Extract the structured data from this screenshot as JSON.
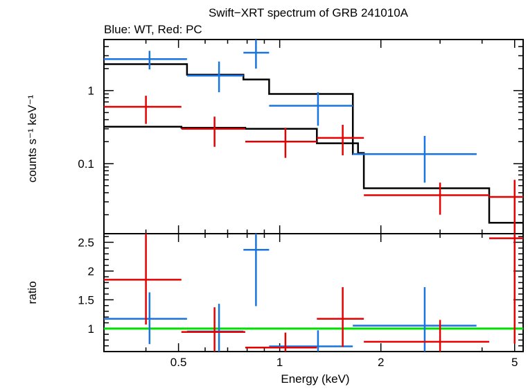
{
  "title": "Swift−XRT spectrum of GRB 241010A",
  "subtitle": "Blue: WT, Red: PC",
  "colors": {
    "wt": "#1874e0",
    "pc": "#e60000",
    "model": "#000000",
    "unity": "#00e000",
    "frame": "#000000"
  },
  "chart_data": [
    {
      "type": "scatter",
      "panel": "spectrum",
      "ylabel": "counts s⁻¹ keV⁻¹",
      "xscale": "log",
      "yscale": "log",
      "xlim": [
        0.3,
        5.3
      ],
      "ylim": [
        0.011,
        5.0
      ],
      "ytick_values": [
        0.1,
        1
      ],
      "ytick_labels": [
        "0.1",
        "1"
      ],
      "series": [
        {
          "key": "wt",
          "points": [
            {
              "x": 0.41,
              "xlo": 0.3,
              "xhi": 0.53,
              "y": 2.7,
              "ylo": 1.95,
              "yhi": 3.5
            },
            {
              "x": 0.66,
              "xlo": 0.53,
              "xhi": 0.78,
              "y": 1.6,
              "ylo": 0.95,
              "yhi": 2.5
            },
            {
              "x": 0.85,
              "xlo": 0.78,
              "xhi": 0.93,
              "y": 3.3,
              "ylo": 2.0,
              "yhi": 5.0
            },
            {
              "x": 1.3,
              "xlo": 0.93,
              "xhi": 1.65,
              "y": 0.62,
              "ylo": 0.33,
              "yhi": 0.95
            },
            {
              "x": 2.7,
              "xlo": 1.65,
              "xhi": 3.85,
              "y": 0.135,
              "ylo": 0.055,
              "yhi": 0.24
            }
          ]
        },
        {
          "key": "pc",
          "points": [
            {
              "x": 0.4,
              "xlo": 0.3,
              "xhi": 0.51,
              "y": 0.6,
              "ylo": 0.35,
              "yhi": 0.85
            },
            {
              "x": 0.64,
              "xlo": 0.51,
              "xhi": 0.79,
              "y": 0.3,
              "ylo": 0.17,
              "yhi": 0.44
            },
            {
              "x": 1.04,
              "xlo": 0.79,
              "xhi": 1.29,
              "y": 0.2,
              "ylo": 0.12,
              "yhi": 0.31
            },
            {
              "x": 1.54,
              "xlo": 1.29,
              "xhi": 1.78,
              "y": 0.225,
              "ylo": 0.13,
              "yhi": 0.34
            },
            {
              "x": 3.0,
              "xlo": 1.78,
              "xhi": 4.2,
              "y": 0.037,
              "ylo": 0.02,
              "yhi": 0.055
            },
            {
              "x": 5.0,
              "xlo": 4.2,
              "xhi": 5.3,
              "y": 0.035,
              "ylo": 0.011,
              "yhi": 0.06
            }
          ]
        }
      ],
      "models": [
        {
          "key": "wt",
          "steps": [
            [
              0.3,
              2.3
            ],
            [
              0.53,
              1.65
            ],
            [
              0.78,
              1.42
            ],
            [
              0.93,
              0.9
            ],
            [
              1.65,
              0.135
            ],
            [
              3.85,
              0.135
            ]
          ]
        },
        {
          "key": "pc",
          "steps": [
            [
              0.3,
              0.32
            ],
            [
              0.51,
              0.31
            ],
            [
              0.79,
              0.3
            ],
            [
              1.29,
              0.19
            ],
            [
              1.71,
              0.14
            ],
            [
              1.78,
              0.046
            ],
            [
              4.2,
              0.0155
            ],
            [
              5.3,
              0.0155
            ]
          ]
        }
      ]
    },
    {
      "type": "scatter",
      "panel": "ratio",
      "xlabel": "Energy (keV)",
      "ylabel": "ratio",
      "xscale": "log",
      "xlim": [
        0.3,
        5.3
      ],
      "ylim": [
        0.6,
        2.65
      ],
      "ytick_values": [
        1,
        1.5,
        2,
        2.5
      ],
      "ytick_labels": [
        "1",
        "1.5",
        "2",
        "2.5"
      ],
      "xtick_values": [
        0.5,
        1,
        2,
        5
      ],
      "xtick_labels": [
        "0.5",
        "1",
        "2",
        "5"
      ],
      "reference_line": 1,
      "series": [
        {
          "key": "wt",
          "points": [
            {
              "x": 0.41,
              "xlo": 0.3,
              "xhi": 0.53,
              "y": 1.17,
              "ylo": 0.73,
              "yhi": 1.63
            },
            {
              "x": 0.66,
              "xlo": 0.53,
              "xhi": 0.78,
              "y": 0.95,
              "ylo": 0.6,
              "yhi": 1.43
            },
            {
              "x": 0.85,
              "xlo": 0.78,
              "xhi": 0.93,
              "y": 2.37,
              "ylo": 1.39,
              "yhi": 2.65
            },
            {
              "x": 1.3,
              "xlo": 0.93,
              "xhi": 1.65,
              "y": 0.69,
              "ylo": 0.6,
              "yhi": 0.97
            },
            {
              "x": 2.7,
              "xlo": 1.65,
              "xhi": 3.85,
              "y": 1.05,
              "ylo": 0.6,
              "yhi": 1.72
            }
          ]
        },
        {
          "key": "pc",
          "points": [
            {
              "x": 0.4,
              "xlo": 0.3,
              "xhi": 0.51,
              "y": 1.85,
              "ylo": 1.07,
              "yhi": 2.65
            },
            {
              "x": 0.64,
              "xlo": 0.51,
              "xhi": 0.79,
              "y": 0.94,
              "ylo": 0.6,
              "yhi": 1.37
            },
            {
              "x": 1.04,
              "xlo": 0.79,
              "xhi": 1.29,
              "y": 0.67,
              "ylo": 0.6,
              "yhi": 0.93
            },
            {
              "x": 1.54,
              "xlo": 1.29,
              "xhi": 1.78,
              "y": 1.17,
              "ylo": 0.68,
              "yhi": 1.72
            },
            {
              "x": 3.0,
              "xlo": 1.78,
              "xhi": 4.2,
              "y": 0.77,
              "ylo": 0.6,
              "yhi": 1.15
            },
            {
              "x": 5.0,
              "xlo": 4.2,
              "xhi": 5.3,
              "y": 2.57,
              "ylo": 0.74,
              "yhi": 2.65
            }
          ]
        }
      ]
    }
  ]
}
